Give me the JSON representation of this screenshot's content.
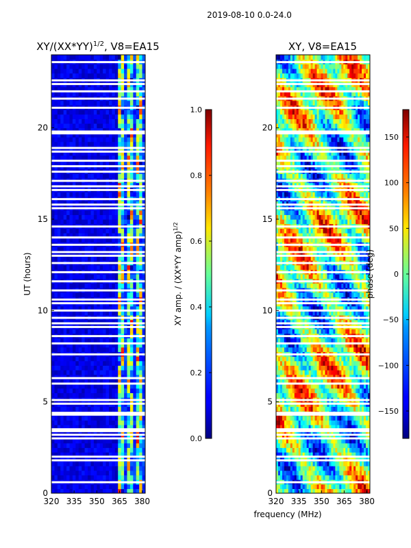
{
  "figure": {
    "suptitle": "2019-08-10 0.0-24.0",
    "shared_xlabel": "frequency (MHz)"
  },
  "chart_data": [
    {
      "type": "heatmap",
      "title_main": "XY/(XX*YY)",
      "title_sup": "1/2",
      "title_rest": ", V8=EA15",
      "ylabel": "UT (hours)",
      "xlim": [
        320,
        382
      ],
      "ylim": [
        0,
        24
      ],
      "xticks": [
        320,
        335,
        350,
        365,
        380
      ],
      "yticks": [
        0,
        5,
        10,
        15,
        20
      ],
      "colorbar": {
        "label_main": "XY amp. / (XX*YY amp)",
        "label_sup": "1/2",
        "range": [
          0.0,
          1.0
        ],
        "ticks": [
          "0.0",
          "0.2",
          "0.4",
          "0.6",
          "0.8",
          "1.0"
        ],
        "colormap": "jet"
      },
      "blank_rows_ut": [
        0.6,
        1.8,
        2.0,
        3.0,
        3.2,
        3.4,
        3.5,
        4.3,
        4.4,
        4.9,
        5.1,
        6.0,
        6.3,
        7.6,
        8.2,
        8.6,
        9.1,
        9.3,
        9.6,
        10.0,
        10.4,
        10.6,
        11.1,
        11.6,
        12.1,
        12.6,
        13.0,
        13.2,
        13.6,
        14.0,
        14.6,
        15.6,
        15.8,
        16.1,
        16.6,
        16.8,
        17.1,
        17.6,
        17.9,
        18.2,
        18.7,
        18.9,
        19.7,
        19.8,
        21.1,
        21.6,
        22.0,
        22.4,
        22.6,
        23.6
      ],
      "high_band_mhz": [
        363,
        382
      ],
      "background_value": 0.05,
      "band_value": 0.45
    },
    {
      "type": "heatmap",
      "title": "XY, V8=EA15",
      "xlim": [
        320,
        382
      ],
      "ylim": [
        0,
        24
      ],
      "xticks": [
        320,
        335,
        350,
        365,
        380
      ],
      "yticks": [
        0,
        5,
        10,
        15,
        20
      ],
      "colorbar": {
        "label": "phase (deg)",
        "range": [
          -180,
          180
        ],
        "ticks": [
          "-150",
          "-100",
          "-50",
          "0",
          "50",
          "100",
          "150"
        ],
        "colormap": "jet"
      },
      "blank_rows_ut": [
        0.6,
        1.8,
        2.0,
        3.0,
        3.2,
        3.4,
        3.5,
        4.3,
        4.4,
        4.9,
        5.1,
        6.0,
        6.3,
        7.6,
        8.2,
        8.6,
        9.1,
        9.3,
        9.6,
        10.0,
        10.4,
        10.6,
        11.1,
        11.6,
        12.1,
        12.6,
        13.0,
        13.2,
        13.6,
        14.0,
        14.6,
        15.6,
        15.8,
        16.1,
        16.6,
        16.8,
        17.1,
        17.6,
        17.9,
        18.2,
        18.7,
        18.9,
        19.7,
        19.8,
        21.1,
        21.6,
        22.0,
        22.4,
        22.6,
        23.6
      ]
    }
  ]
}
